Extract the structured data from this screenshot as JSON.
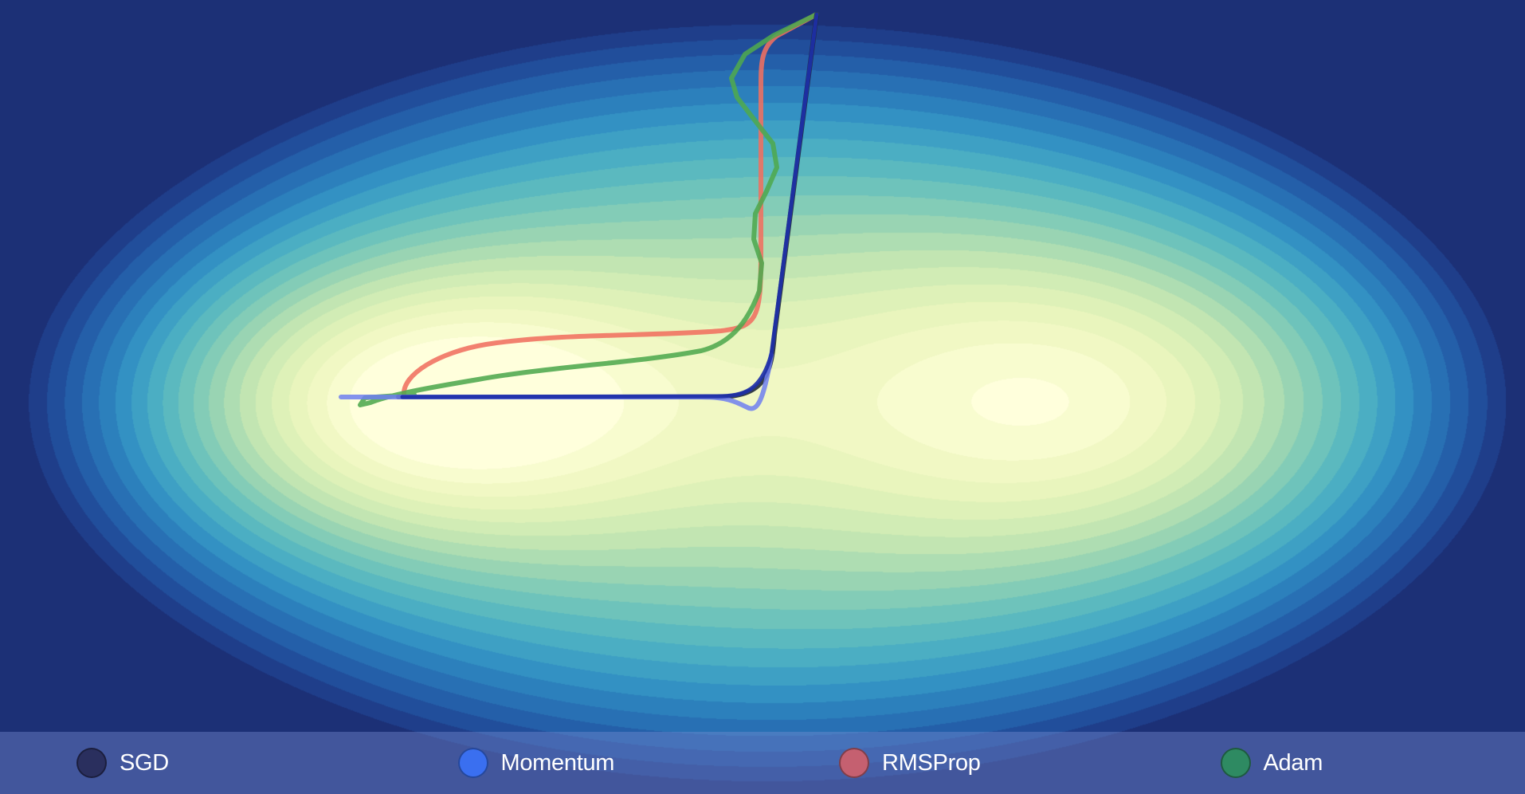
{
  "legend": {
    "items": [
      {
        "label": "SGD",
        "color": "#2a2f5e"
      },
      {
        "label": "Momentum",
        "color": "#3a6ff0"
      },
      {
        "label": "RMSProp",
        "color": "#c56070"
      },
      {
        "label": "Adam",
        "color": "#2e8a62"
      }
    ]
  },
  "colors": {
    "sgd_path": "#202a3a",
    "momentum_path": "#1d2fa8",
    "momentum_path_light": "#6f7ff0",
    "rmsprop_path": "#f07060",
    "adam_path": "#4fa84e"
  }
}
